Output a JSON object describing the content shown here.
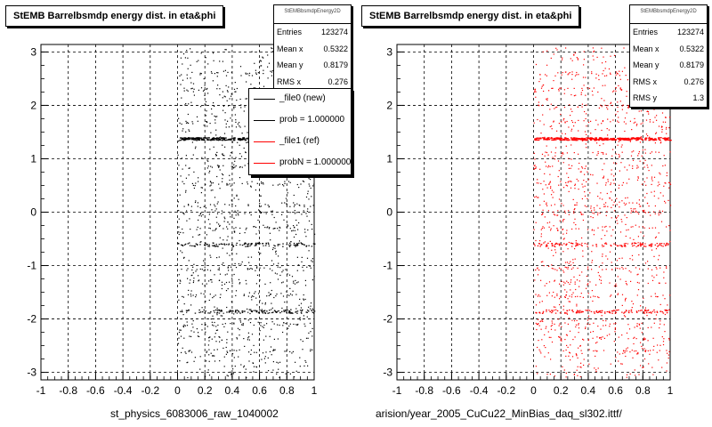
{
  "chart_data": [
    {
      "type": "scatter",
      "title": "StEMB Barrelbsmdp energy dist. in eta&phi",
      "xlabel": "st_physics_6083006_raw_1040002",
      "ylabel": "",
      "xlim": [
        -1,
        1
      ],
      "ylim": [
        -3.14,
        3.14
      ],
      "xticks": [
        -1,
        -0.8,
        -0.6,
        -0.4,
        -0.2,
        0,
        0.2,
        0.4,
        0.6,
        0.8,
        1
      ],
      "yticks": [
        -3,
        -2,
        -1,
        0,
        1,
        2,
        3
      ],
      "grid": true,
      "point_color": "#000000",
      "dense_bands_y": [
        1.38,
        -0.6,
        -1.85
      ],
      "populated_x_range": [
        0,
        1
      ],
      "stats": {
        "name": "StEMBbsmdpEnergy2D",
        "rows": [
          {
            "label": "Entries",
            "value": "123274"
          },
          {
            "label": "Mean x",
            "value": "0.5322"
          },
          {
            "label": "Mean y",
            "value": "0.8179"
          },
          {
            "label": "RMS x",
            "value": "0.276"
          }
        ]
      },
      "legend": {
        "placement": "top-right",
        "entries": [
          {
            "label": "_file0 (new)",
            "color": "#000000"
          },
          {
            "label": "prob = 1.000000",
            "color": "#000000"
          },
          {
            "label": "_file1 (ref)",
            "color": "#ff0000"
          },
          {
            "label": "probN = 1.000000",
            "color": "#ff0000"
          }
        ]
      }
    },
    {
      "type": "scatter",
      "title": "StEMB Barrelbsmdp energy dist. in eta&phi",
      "xlabel": "arision/year_2005_CuCu22_MinBias_daq_sl302.ittf/",
      "ylabel": "",
      "xlim": [
        -1,
        1
      ],
      "ylim": [
        -3.14,
        3.14
      ],
      "xticks": [
        -1,
        -0.8,
        -0.6,
        -0.4,
        -0.2,
        0,
        0.2,
        0.4,
        0.6,
        0.8,
        1
      ],
      "yticks": [
        -3,
        -2,
        -1,
        0,
        1,
        2,
        3
      ],
      "grid": true,
      "point_color": "#ff0000",
      "dense_bands_y": [
        1.38,
        -0.6,
        -1.85
      ],
      "populated_x_range": [
        0,
        1
      ],
      "stats": {
        "name": "StEMBbsmdpEnergy2D",
        "rows": [
          {
            "label": "Entries",
            "value": "123274"
          },
          {
            "label": "Mean x",
            "value": "0.5322"
          },
          {
            "label": "Mean y",
            "value": "0.8179"
          },
          {
            "label": "RMS x",
            "value": "0.276"
          },
          {
            "label": "RMS y",
            "value": "1.3"
          }
        ]
      }
    }
  ]
}
